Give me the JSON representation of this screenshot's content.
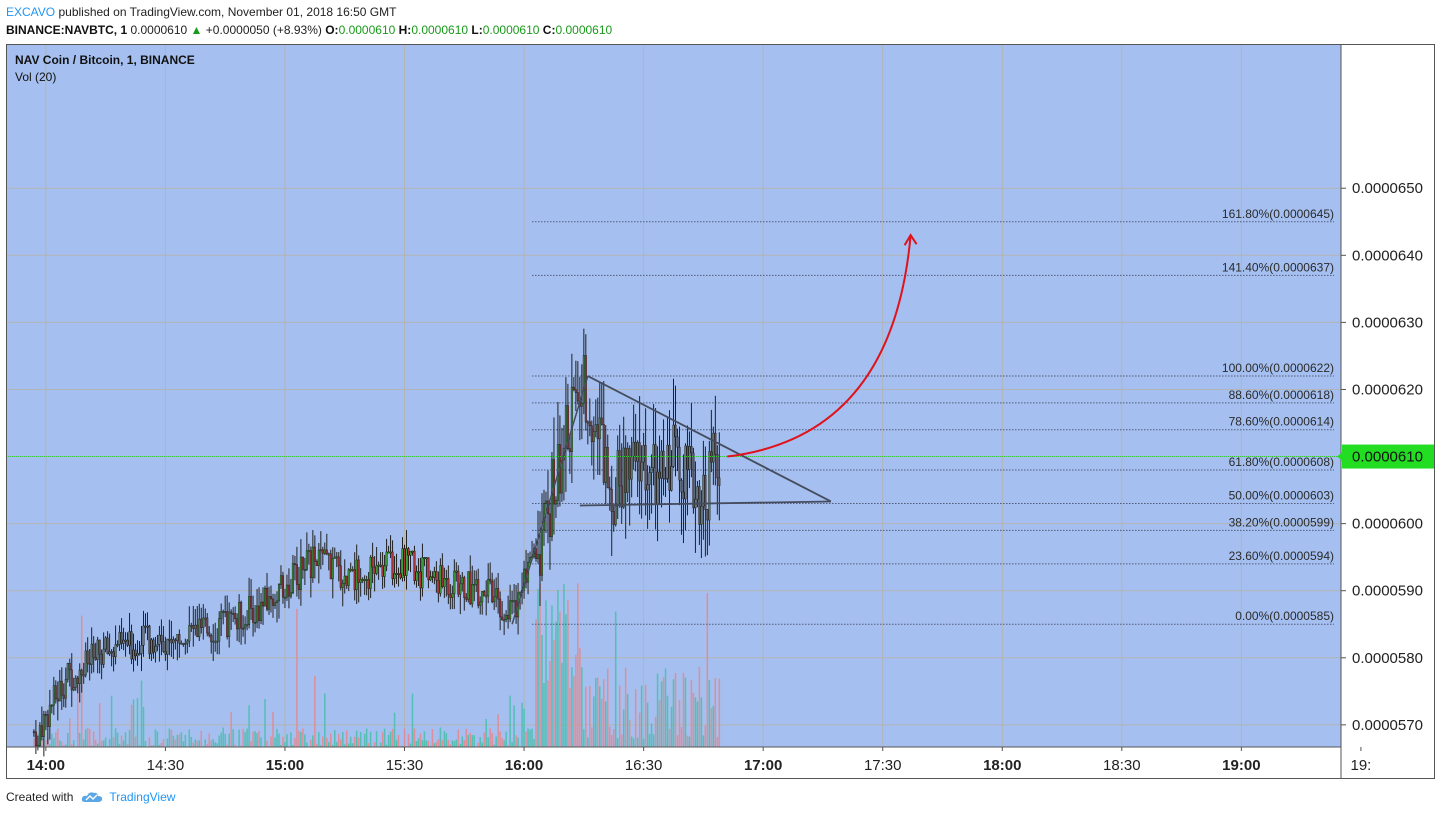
{
  "header": {
    "author": "EXCAVO",
    "published_text": "published on TradingView.com, November 01, 2018 16:50 GMT",
    "symbol": "BINANCE:NAVBTC, 1",
    "last_price": "0.0000610",
    "change_arrow": "▲",
    "change": "+0.0000050 (+8.93%)",
    "ohlc": [
      {
        "label": "O:",
        "value": "0.0000610"
      },
      {
        "label": "H:",
        "value": "0.0000610"
      },
      {
        "label": "L:",
        "value": "0.0000610"
      },
      {
        "label": "C:",
        "value": "0.0000610"
      }
    ]
  },
  "footer": {
    "created_with": "Created with",
    "brand": "TradingView",
    "logo_icon": "tradingview-cloud-icon"
  },
  "colors": {
    "plot_bg": "#a5c0f0",
    "grid": "#b4b4b4",
    "up_body": "#3f9e3b",
    "down_body": "#a8353a",
    "vol_up": "#55bfb6",
    "vol_down": "#dc8f9b",
    "price_line": "#3bc43b",
    "price_tag": "#22dd22",
    "fib_line": "#505a78",
    "triangle": "#454c5e",
    "arrow": "#e0121c"
  },
  "chart_data": {
    "type": "candlestick",
    "title": "NAV Coin / Bitcoin, 1, BINANCE",
    "indicator": "Vol (20)",
    "ylim": [
      5.667e-05,
      6.715e-05
    ],
    "xlim": [
      "13:50",
      "19:25"
    ],
    "y_ticks": [
      "0.0000650",
      "0.0000640",
      "0.0000630",
      "0.0000620",
      "0.0000610",
      "0.0000600",
      "0.0000590",
      "0.0000580",
      "0.0000570"
    ],
    "y_tick_values": [
      6.5e-05,
      6.4e-05,
      6.3e-05,
      6.2e-05,
      6.1e-05,
      6e-05,
      5.9e-05,
      5.8e-05,
      5.7e-05
    ],
    "x_ticks": [
      {
        "t": "14:00",
        "label": "14:00",
        "bold": true
      },
      {
        "t": "14:30",
        "label": "14:30",
        "bold": false
      },
      {
        "t": "15:00",
        "label": "15:00",
        "bold": true
      },
      {
        "t": "15:30",
        "label": "15:30",
        "bold": false
      },
      {
        "t": "16:00",
        "label": "16:00",
        "bold": true
      },
      {
        "t": "16:30",
        "label": "16:30",
        "bold": false
      },
      {
        "t": "17:00",
        "label": "17:00",
        "bold": true
      },
      {
        "t": "17:30",
        "label": "17:30",
        "bold": false
      },
      {
        "t": "18:00",
        "label": "18:00",
        "bold": true
      },
      {
        "t": "18:30",
        "label": "18:30",
        "bold": false
      },
      {
        "t": "19:00",
        "label": "19:00",
        "bold": true
      },
      {
        "t": "19:30",
        "label": "19:",
        "bold": false
      }
    ],
    "last_price": {
      "value": 6.1e-05,
      "label": "0.0000610"
    },
    "key_closes": [
      {
        "t": "13:58",
        "close": 5.69e-05
      },
      {
        "t": "14:05",
        "close": 5.77e-05
      },
      {
        "t": "14:15",
        "close": 5.81e-05
      },
      {
        "t": "14:30",
        "close": 5.83e-05
      },
      {
        "t": "14:45",
        "close": 5.85e-05
      },
      {
        "t": "14:55",
        "close": 5.88e-05
      },
      {
        "t": "15:08",
        "close": 5.95e-05
      },
      {
        "t": "15:15",
        "close": 5.92e-05
      },
      {
        "t": "15:30",
        "close": 5.94e-05
      },
      {
        "t": "15:40",
        "close": 5.91e-05
      },
      {
        "t": "15:50",
        "close": 5.9e-05
      },
      {
        "t": "15:57",
        "close": 5.86e-05
      },
      {
        "t": "16:03",
        "close": 5.955e-05
      },
      {
        "t": "16:08",
        "close": 6.07e-05
      },
      {
        "t": "16:12",
        "close": 6.17e-05
      },
      {
        "t": "16:15",
        "close": 6.21e-05
      },
      {
        "t": "16:18",
        "close": 6.15e-05
      },
      {
        "t": "16:22",
        "close": 6.05e-05
      },
      {
        "t": "16:25",
        "close": 6.07e-05
      },
      {
        "t": "16:30",
        "close": 6.09e-05
      },
      {
        "t": "16:34",
        "close": 6.05e-05
      },
      {
        "t": "16:38",
        "close": 6.12e-05
      },
      {
        "t": "16:42",
        "close": 6.06e-05
      },
      {
        "t": "16:45",
        "close": 6.04e-05
      },
      {
        "t": "16:48",
        "close": 6.1e-05
      }
    ],
    "volume_peaks": [
      {
        "t": "14:09",
        "direction": "up"
      },
      {
        "t": "15:03",
        "direction": "up"
      },
      {
        "t": "16:10",
        "direction": "up"
      },
      {
        "t": "16:23",
        "direction": "down"
      },
      {
        "t": "16:46",
        "direction": "down"
      }
    ],
    "fib_levels": [
      {
        "label": "161.80%(0.0000645)",
        "value": 6.45e-05
      },
      {
        "label": "141.40%(0.0000637)",
        "value": 6.37e-05
      },
      {
        "label": "100.00%(0.0000622)",
        "value": 6.22e-05
      },
      {
        "label": "88.60%(0.0000618)",
        "value": 6.18e-05
      },
      {
        "label": "78.60%(0.0000614)",
        "value": 6.14e-05
      },
      {
        "label": "61.80%(0.0000608)",
        "value": 6.08e-05
      },
      {
        "label": "50.00%(0.0000603)",
        "value": 6.03e-05
      },
      {
        "label": "38.20%(0.0000599)",
        "value": 5.99e-05
      },
      {
        "label": "23.60%(0.0000594)",
        "value": 5.94e-05
      },
      {
        "label": "0.00%(0.0000585)",
        "value": 5.85e-05
      }
    ],
    "fib_start": "16:02",
    "triangle": [
      {
        "t": "16:16",
        "y": 6.22e-05
      },
      {
        "t": "17:17",
        "y": 6.033e-05
      },
      {
        "t": "16:14",
        "y": 6.027e-05
      }
    ],
    "swing_line": [
      {
        "t": "15:57",
        "y": 5.85e-05
      },
      {
        "t": "16:16",
        "y": 6.22e-05
      }
    ],
    "projection_arrow": {
      "from": {
        "t": "16:51",
        "y": 6.1e-05
      },
      "to": {
        "t": "17:37",
        "y": 6.43e-05
      }
    },
    "grid": true
  }
}
